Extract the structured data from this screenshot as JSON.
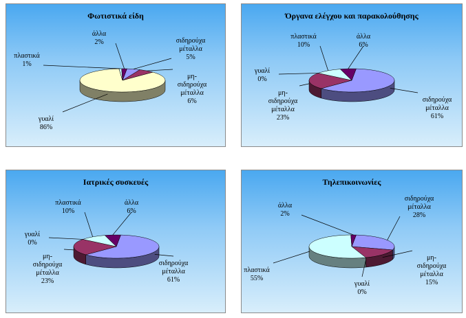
{
  "colors": {
    "metal": "#9999ff",
    "nonferrous": "#993366",
    "glass": "#ffffcc",
    "plastic": "#ccffff",
    "other": "#660066",
    "label": "#000000"
  },
  "chart_data": [
    {
      "type": "pie",
      "title": "Φωτιστικά είδη",
      "slices": [
        {
          "key": "metal",
          "label": [
            "σιδηρούχα",
            "μέταλλα",
            "5%"
          ],
          "value": 5
        },
        {
          "key": "nonferrous",
          "label": [
            "μη-",
            "σιδηρούχα",
            "μέταλλα",
            "6%"
          ],
          "value": 6
        },
        {
          "key": "glass",
          "label": [
            "γυαλί",
            "86%"
          ],
          "value": 86
        },
        {
          "key": "plastic",
          "label": [
            "πλαστικά",
            "1%"
          ],
          "value": 1
        },
        {
          "key": "other",
          "label": [
            "άλλα",
            "2%"
          ],
          "value": 2
        }
      ]
    },
    {
      "type": "pie",
      "title": "Όργανα ελέγχου και παρακολούθησης",
      "slices": [
        {
          "key": "metal",
          "label": [
            "σιδηρούχα",
            "μέταλλα",
            "61%"
          ],
          "value": 61
        },
        {
          "key": "nonferrous",
          "label": [
            "μη-",
            "σιδηρούχα",
            "μέταλλα",
            "23%"
          ],
          "value": 23
        },
        {
          "key": "glass",
          "label": [
            "γυαλί",
            "0%"
          ],
          "value": 0
        },
        {
          "key": "plastic",
          "label": [
            "πλαστικά",
            "10%"
          ],
          "value": 10
        },
        {
          "key": "other",
          "label": [
            "άλλα",
            "6%"
          ],
          "value": 6
        }
      ]
    },
    {
      "type": "pie",
      "title": "Ιατρικές συσκευές",
      "slices": [
        {
          "key": "metal",
          "label": [
            "σιδηρούχα",
            "μέταλλα",
            "61%"
          ],
          "value": 61
        },
        {
          "key": "nonferrous",
          "label": [
            "μη-",
            "σιδηρούχα",
            "μέταλλα",
            "23%"
          ],
          "value": 23
        },
        {
          "key": "glass",
          "label": [
            "γυαλί",
            "0%"
          ],
          "value": 0
        },
        {
          "key": "plastic",
          "label": [
            "πλαστικά",
            "10%"
          ],
          "value": 10
        },
        {
          "key": "other",
          "label": [
            "άλλα",
            "6%"
          ],
          "value": 6
        }
      ]
    },
    {
      "type": "pie",
      "title": "Τηλεπικοινωνίες",
      "slices": [
        {
          "key": "metal",
          "label": [
            "σιδηρούχα",
            "μέταλλα",
            "28%"
          ],
          "value": 28
        },
        {
          "key": "nonferrous",
          "label": [
            "μη-",
            "σιδηρούχα",
            "μέταλλα",
            "15%"
          ],
          "value": 15
        },
        {
          "key": "glass",
          "label": [
            "γυαλί",
            "0%"
          ],
          "value": 0
        },
        {
          "key": "plastic",
          "label": [
            "πλαστικά",
            "55%"
          ],
          "value": 55
        },
        {
          "key": "other",
          "label": [
            "άλλα",
            "2%"
          ],
          "value": 2
        }
      ]
    }
  ]
}
